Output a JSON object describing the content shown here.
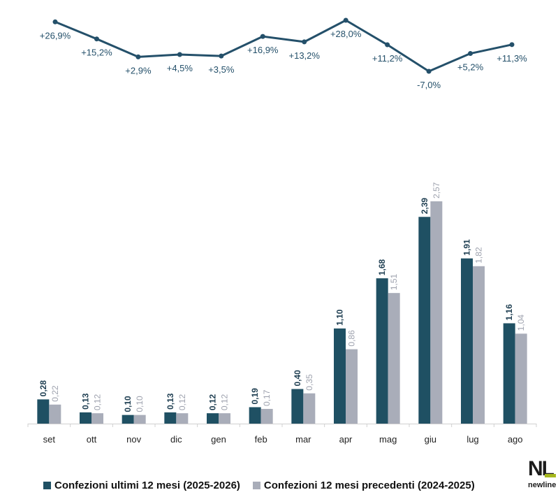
{
  "colors": {
    "current": "#1f5063",
    "previous": "#a9adb9",
    "line": "#24506a",
    "axis": "#d0d0d0",
    "logo_accent": "#a6b81e"
  },
  "legend": {
    "current": "Confezioni ultimi 12 mesi (2025-2026)",
    "previous": "Confezioni 12 mesi precedenti (2024-2025)"
  },
  "logo": {
    "mark": "NL",
    "text": "newline"
  },
  "chart_data": [
    {
      "type": "bar",
      "categories": [
        "set",
        "ott",
        "nov",
        "dic",
        "gen",
        "feb",
        "mar",
        "apr",
        "mag",
        "giu",
        "lug",
        "ago"
      ],
      "series": [
        {
          "name": "Confezioni ultimi 12 mesi (2025-2026)",
          "values": [
            0.28,
            0.13,
            0.1,
            0.13,
            0.12,
            0.19,
            0.4,
            1.1,
            1.68,
            2.39,
            1.91,
            1.16
          ],
          "labels": [
            "0,28",
            "0,13",
            "0,10",
            "0,13",
            "0,12",
            "0,19",
            "0,40",
            "1,10",
            "1,68",
            "2,39",
            "1,91",
            "1,16"
          ]
        },
        {
          "name": "Confezioni 12 mesi precedenti (2024-2025)",
          "values": [
            0.22,
            0.12,
            0.1,
            0.12,
            0.12,
            0.17,
            0.35,
            0.86,
            1.51,
            2.57,
            1.82,
            1.04
          ],
          "labels": [
            "0,22",
            "0,12",
            "0,10",
            "0,12",
            "0,12",
            "0,17",
            "0,35",
            "0,86",
            "1,51",
            "2,57",
            "1,82",
            "1,04"
          ]
        }
      ],
      "ylim": [
        0,
        2.6
      ],
      "grid": false,
      "legend_position": "bottom"
    },
    {
      "type": "line",
      "categories": [
        "set",
        "ott",
        "nov",
        "dic",
        "gen",
        "feb",
        "mar",
        "apr",
        "mag",
        "giu",
        "lug",
        "ago"
      ],
      "values": [
        26.9,
        15.2,
        2.9,
        4.5,
        3.5,
        16.9,
        13.2,
        28.0,
        11.2,
        -7.0,
        5.2,
        11.3
      ],
      "labels": [
        "+26,9%",
        "+15,2%",
        "+2,9%",
        "+4,5%",
        "+3,5%",
        "+16,9%",
        "+13,2%",
        "+28,0%",
        "+11,2%",
        "-7,0%",
        "+5,2%",
        "+11,3%"
      ],
      "ylim": [
        -7,
        28
      ]
    }
  ]
}
